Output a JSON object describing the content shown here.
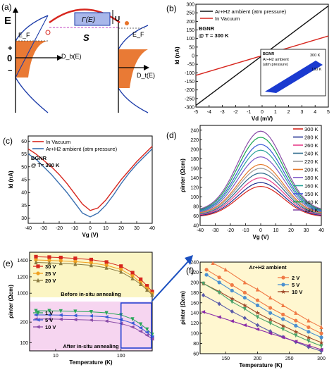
{
  "panels": {
    "a": {
      "label": "(a)",
      "energy": "E",
      "ef_left": "E_F",
      "ef_right": "E_F",
      "plus": "+",
      "zero": "0",
      "minus": "−",
      "db": "D_b(E)",
      "dt": "D_t(E)",
      "gamma": "Γ(E)",
      "s": "S",
      "u": "U"
    },
    "b": {
      "label": "(b)",
      "annotation": [
        "BGNR",
        "@ T = 300 K"
      ],
      "inset_labels": [
        "BGNR",
        "Ar+H2 ambient",
        "(atm pressure)",
        "300 K",
        "130 K"
      ]
    },
    "c": {
      "label": "(c)",
      "annotation": [
        "BGNR",
        "@ T= 300 K"
      ]
    },
    "d": {
      "label": "(d)"
    },
    "e": {
      "label": "(e)",
      "before": "Before in-situ annealing",
      "after": "After in-situ annealing"
    },
    "f": {
      "label": "(f)",
      "annotation": "Ar+H2 ambient"
    }
  },
  "colors": {
    "red": "#d7261e",
    "black": "#111111",
    "blue": "#3a6fb0",
    "orange": "#f07a45"
  },
  "chart_data": [
    {
      "id": "b",
      "type": "line",
      "title": "",
      "xlabel": "Vd (mV)",
      "ylabel": "Id (nA)",
      "xlim": [
        -5,
        5
      ],
      "ylim": [
        -300,
        300
      ],
      "xticks": [
        -5,
        -4,
        -3,
        -2,
        -1,
        0,
        1,
        2,
        3,
        4,
        5
      ],
      "yticks": [
        -300,
        -250,
        -200,
        -150,
        -100,
        -50,
        0,
        50,
        100,
        150,
        200,
        250,
        300
      ],
      "legend_position": "top-left",
      "series": [
        {
          "name": "Ar+H2 ambient (atm pressure)",
          "color": "#111111",
          "x": [
            -5,
            5
          ],
          "y": [
            -290,
            290
          ]
        },
        {
          "name": "In Vacuum",
          "color": "#d7261e",
          "x": [
            -5,
            5
          ],
          "y": [
            -115,
            115
          ]
        }
      ]
    },
    {
      "id": "c",
      "type": "line",
      "title": "",
      "xlabel": "Vg (V)",
      "ylabel": "Id (nA)",
      "xlim": [
        -40,
        40
      ],
      "ylim": [
        28,
        62
      ],
      "xticks": [
        -40,
        -30,
        -20,
        -10,
        0,
        10,
        20,
        30,
        40
      ],
      "yticks": [
        30,
        35,
        40,
        45,
        50,
        55,
        60
      ],
      "legend_position": "top-left",
      "series": [
        {
          "name": "In Vacuum",
          "color": "#d7261e",
          "x": [
            -40,
            -35,
            -30,
            -25,
            -20,
            -15,
            -10,
            -5,
            0,
            5,
            10,
            15,
            20,
            25,
            30,
            35,
            40
          ],
          "y": [
            57,
            55,
            52.5,
            50,
            47,
            43.5,
            39.5,
            35.5,
            33,
            34,
            37,
            41,
            45,
            48.5,
            52,
            55,
            58
          ]
        },
        {
          "name": "Ar+H2 ambient (atm pressure)",
          "color": "#3a6fb0",
          "x": [
            -40,
            -35,
            -30,
            -25,
            -20,
            -15,
            -10,
            -5,
            0,
            5,
            10,
            15,
            20,
            25,
            30,
            35,
            40
          ],
          "y": [
            55,
            53,
            50,
            47,
            43.5,
            40,
            36,
            32,
            30.5,
            32,
            35,
            39,
            43.5,
            47.5,
            51,
            54,
            57
          ]
        }
      ]
    },
    {
      "id": "d",
      "type": "line",
      "title": "",
      "xlabel": "Vg (V)",
      "ylabel": "ρinter (Ωcm)",
      "xlim": [
        -40,
        40
      ],
      "ylim": [
        40,
        250
      ],
      "xticks": [
        -40,
        -30,
        -20,
        -10,
        0,
        10,
        20,
        30,
        40
      ],
      "yticks": [
        40,
        60,
        80,
        100,
        120,
        140,
        160,
        180,
        200,
        220,
        240
      ],
      "legend_position": "right",
      "series": [
        {
          "name": "300 K",
          "color": "#d7261e",
          "peak": 122
        },
        {
          "name": "280 K",
          "color": "#1f2f8f",
          "peak": 130
        },
        {
          "name": "260 K",
          "color": "#e83f8a",
          "peak": 140
        },
        {
          "name": "240 K",
          "color": "#2e6a8c",
          "peak": 150
        },
        {
          "name": "220 K",
          "color": "#9a9a9a",
          "peak": 160
        },
        {
          "name": "200 K",
          "color": "#e3782b",
          "peak": 168
        },
        {
          "name": "180 K",
          "color": "#7c57c6",
          "peak": 184
        },
        {
          "name": "160 K",
          "color": "#2aa39a",
          "peak": 198
        },
        {
          "name": "150 K",
          "color": "#3b5bd6",
          "peak": 210
        },
        {
          "name": "140 K",
          "color": "#1aa650",
          "peak": 225
        },
        {
          "name": "130 K",
          "color": "#8a4da8",
          "peak": 238
        }
      ]
    },
    {
      "id": "e",
      "type": "line",
      "title": "",
      "xlabel": "Temperature (K)",
      "ylabel": "ρinter (Ωcm)",
      "xlog": true,
      "xlim": [
        4,
        300
      ],
      "xticks": [
        10,
        100
      ],
      "yticks_top": [
        1000,
        1200,
        1400
      ],
      "yticks_bottom": [
        100,
        200
      ],
      "legend_position": "left",
      "series": [
        {
          "name": "30 V",
          "color": "#d7261e",
          "group": "before",
          "x": [
            5,
            8,
            12,
            20,
            35,
            60,
            100,
            150,
            200,
            250,
            300
          ],
          "y": [
            1445,
            1440,
            1435,
            1425,
            1410,
            1380,
            1330,
            1250,
            1170,
            1090,
            1020
          ]
        },
        {
          "name": "25 V",
          "color": "#f0a020",
          "group": "before",
          "x": [
            5,
            8,
            12,
            20,
            35,
            60,
            100,
            150,
            200,
            250,
            300
          ],
          "y": [
            1405,
            1400,
            1395,
            1385,
            1370,
            1340,
            1290,
            1210,
            1130,
            1060,
            995
          ]
        },
        {
          "name": "20 V",
          "color": "#8a7a40",
          "group": "before",
          "x": [
            5,
            8,
            12,
            20,
            35,
            60,
            100,
            150,
            200,
            250,
            300
          ],
          "y": [
            1375,
            1370,
            1365,
            1355,
            1340,
            1310,
            1260,
            1180,
            1110,
            1040,
            980
          ]
        },
        {
          "name": "1 V",
          "color": "#2aa65a",
          "group": "after",
          "x": [
            5,
            8,
            12,
            20,
            35,
            60,
            100,
            150,
            200,
            250,
            300
          ],
          "y": [
            255,
            255,
            254,
            252,
            250,
            245,
            235,
            215,
            190,
            165,
            140
          ]
        },
        {
          "name": "5 V",
          "color": "#3b5bd6",
          "group": "after",
          "x": [
            5,
            8,
            12,
            20,
            35,
            60,
            100,
            150,
            200,
            250,
            300
          ],
          "y": [
            235,
            235,
            234,
            232,
            230,
            225,
            212,
            195,
            172,
            150,
            128
          ]
        },
        {
          "name": "10 V",
          "color": "#8a4da8",
          "group": "after",
          "x": [
            5,
            8,
            12,
            20,
            35,
            60,
            100,
            150,
            200,
            250,
            300
          ],
          "y": [
            215,
            215,
            214,
            212,
            210,
            205,
            193,
            176,
            155,
            136,
            118
          ]
        }
      ]
    },
    {
      "id": "f",
      "type": "line",
      "title": "",
      "xlabel": "Temperature (K)",
      "ylabel": "ρinter (Ωcm)",
      "xlim": [
        110,
        300
      ],
      "ylim": [
        60,
        240
      ],
      "xticks": [
        150,
        200,
        250,
        300
      ],
      "yticks": [
        60,
        80,
        100,
        120,
        140,
        160,
        180,
        200,
        220,
        240
      ],
      "legend_position": "top-right",
      "series": [
        {
          "name": "",
          "color": "#f07a45",
          "x": [
            130,
            150,
            180,
            200,
            220,
            240,
            260,
            280,
            300
          ],
          "y": [
            238,
            225,
            200,
            186,
            170,
            155,
            140,
            125,
            112
          ]
        },
        {
          "name": "2 V",
          "color": "#f07a45",
          "x": [
            120,
            140,
            160,
            180,
            200,
            220,
            240,
            260,
            280,
            300
          ],
          "y": [
            225,
            210,
            195,
            180,
            165,
            150,
            137,
            125,
            112,
            100
          ]
        },
        {
          "name": "5 V",
          "color": "#4a90d0",
          "x": [
            120,
            140,
            160,
            180,
            200,
            220,
            240,
            260,
            280,
            300
          ],
          "y": [
            215,
            200,
            184,
            170,
            155,
            140,
            128,
            115,
            103,
            92
          ]
        },
        {
          "name": "10 V",
          "color": "#a04a2a",
          "x": [
            115,
            140,
            160,
            180,
            200,
            220,
            240,
            260,
            280,
            300
          ],
          "y": [
            198,
            182,
            168,
            155,
            140,
            127,
            115,
            103,
            92,
            82
          ]
        },
        {
          "name": "",
          "color": "#4aa36a",
          "x": [
            115,
            140,
            160,
            180,
            200,
            220,
            240,
            260,
            280,
            300
          ],
          "y": [
            198,
            180,
            162,
            148,
            132,
            120,
            108,
            96,
            85,
            75
          ]
        },
        {
          "name": "",
          "color": "#5a5aa8",
          "x": [
            115,
            140,
            160,
            180,
            200,
            220,
            240,
            260,
            280,
            300
          ],
          "y": [
            175,
            158,
            143,
            130,
            116,
            104,
            93,
            83,
            73,
            65
          ]
        },
        {
          "name": "",
          "color": "#8a2aa8",
          "x": [
            115,
            140,
            160,
            180,
            200,
            220,
            240,
            260,
            280,
            300
          ],
          "y": [
            142,
            132,
            124,
            116,
            108,
            100,
            92,
            84,
            76,
            68
          ]
        }
      ]
    }
  ]
}
